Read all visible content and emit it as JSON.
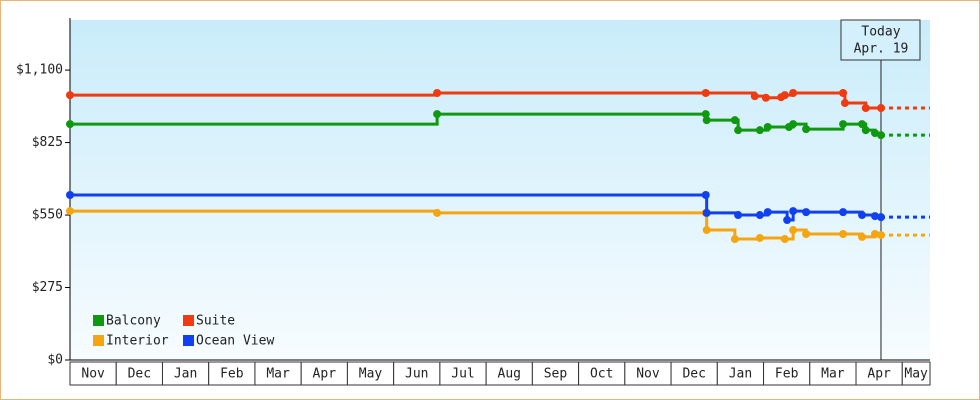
{
  "chart_data": {
    "type": "step-line",
    "months": [
      "Nov",
      "Dec",
      "Jan",
      "Feb",
      "Mar",
      "Apr",
      "May",
      "Jun",
      "Jul",
      "Aug",
      "Sep",
      "Oct",
      "Nov",
      "Dec",
      "Jan",
      "Feb",
      "Mar",
      "Apr",
      "May"
    ],
    "xlim": [
      0,
      18.6
    ],
    "ylim": [
      0,
      1290
    ],
    "yticks": [
      {
        "value": 0,
        "label": "$0"
      },
      {
        "value": 275,
        "label": "$275"
      },
      {
        "value": 550,
        "label": "$550"
      },
      {
        "value": 825,
        "label": "$825"
      },
      {
        "value": 1100,
        "label": "$1,100"
      }
    ],
    "today": {
      "x": 17.54,
      "label": "Today",
      "date": "Apr. 19"
    },
    "projection": true,
    "legend": "bottom-left",
    "series": [
      {
        "name": "Balcony",
        "color": "#109910",
        "x": [
          0,
          7.94,
          13.75,
          13.77,
          14.38,
          14.45,
          14.92,
          15.09,
          15.55,
          15.64,
          15.92,
          16.72,
          17.13,
          17.21,
          17.41,
          17.54
        ],
        "values": [
          895,
          933,
          933,
          910,
          910,
          872,
          872,
          884,
          884,
          895,
          876,
          895,
          895,
          872,
          861,
          853
        ]
      },
      {
        "name": "Suite",
        "color": "#f03a10",
        "x": [
          0,
          7.94,
          13.75,
          14.81,
          15.05,
          15.38,
          15.46,
          15.64,
          16.72,
          16.76,
          17.21,
          17.54
        ],
        "values": [
          1005,
          1013,
          1013,
          1001,
          995,
          997,
          1005,
          1013,
          1013,
          975,
          956,
          956
        ]
      },
      {
        "name": "Interior",
        "color": "#f5a510",
        "x": [
          0,
          7.94,
          13.75,
          13.77,
          14.38,
          14.92,
          15.46,
          15.64,
          15.92,
          16.72,
          17.13,
          17.41,
          17.54
        ],
        "values": [
          565,
          558,
          558,
          493,
          459,
          463,
          459,
          493,
          478,
          478,
          467,
          478,
          474
        ]
      },
      {
        "name": "Ocean View",
        "color": "#1040f0",
        "x": [
          0,
          13.75,
          13.77,
          14.45,
          14.92,
          15.09,
          15.51,
          15.64,
          15.92,
          16.72,
          17.13,
          17.41,
          17.54
        ],
        "values": [
          626,
          626,
          558,
          550,
          550,
          561,
          531,
          565,
          561,
          561,
          550,
          546,
          542
        ]
      }
    ]
  }
}
